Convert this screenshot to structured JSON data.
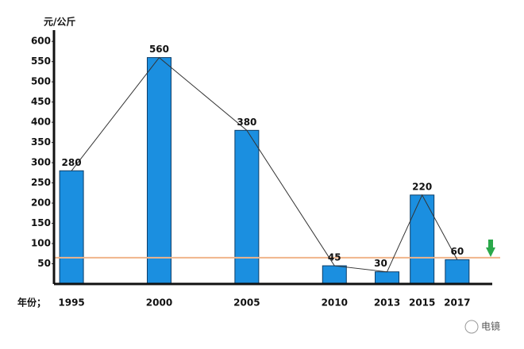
{
  "chart_data": {
    "type": "bar",
    "ylabel": "元/公斤",
    "xlabel": "年份；",
    "x": [
      1995,
      2000,
      2005,
      2010,
      2013,
      2015,
      2017
    ],
    "values": [
      280,
      560,
      380,
      45,
      30,
      220,
      60
    ],
    "color": "#1b8fe0",
    "line_color": "#333333",
    "xlim": [
      1994,
      2019
    ],
    "ylim": [
      0,
      620
    ],
    "yticks": [
      50,
      100,
      150,
      200,
      250,
      300,
      350,
      400,
      450,
      500,
      550,
      600
    ],
    "ref_line": 65,
    "ref_color": "#f0b48a",
    "watermark": "电镜"
  }
}
